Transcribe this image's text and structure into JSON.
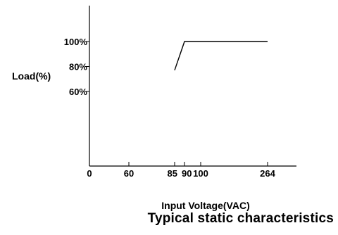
{
  "chart_data": {
    "type": "line",
    "title": "Typical static characteristics",
    "xlabel": "Input Voltage(VAC)",
    "ylabel": "Load(%)",
    "x_ticks": [
      0,
      60,
      85,
      90,
      100,
      264
    ],
    "x_tick_labels": [
      "0",
      "60",
      "85",
      "90",
      "100",
      "264"
    ],
    "y_ticks": [
      60,
      80,
      100
    ],
    "y_tick_labels": [
      "60%",
      "80%",
      "100%"
    ],
    "xlim": [
      0,
      310
    ],
    "ylim": [
      0,
      130
    ],
    "series": [
      {
        "x": [
          85,
          90,
          264
        ],
        "y": [
          77,
          100,
          100
        ]
      }
    ],
    "grid": false,
    "colors": {
      "line": "#000000",
      "axis": "#000000"
    }
  }
}
